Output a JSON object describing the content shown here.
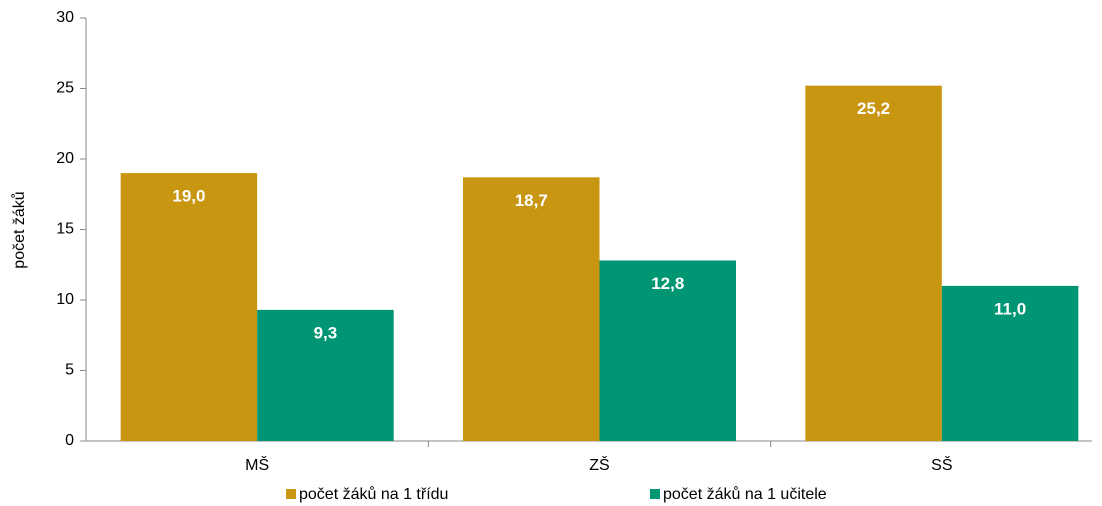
{
  "chart_data": {
    "type": "bar",
    "y_label": "počet žáků",
    "categories": [
      "MŠ",
      "ZŠ",
      "SŠ"
    ],
    "series": [
      {
        "name": "počet žáků na 1 třídu",
        "color": "#c99612",
        "values": [
          19.0,
          18.7,
          25.2
        ],
        "value_labels": [
          "19,0",
          "18,7",
          "25,2"
        ]
      },
      {
        "name": "počet žáků na 1 učitele",
        "color": "#009673",
        "values": [
          9.3,
          12.8,
          11.0
        ],
        "value_labels": [
          "9,3",
          "12,8",
          "11,0"
        ]
      }
    ],
    "ylim": [
      0,
      30
    ],
    "yticks": [
      0,
      5,
      10,
      15,
      20,
      25,
      30
    ],
    "grid": false
  }
}
